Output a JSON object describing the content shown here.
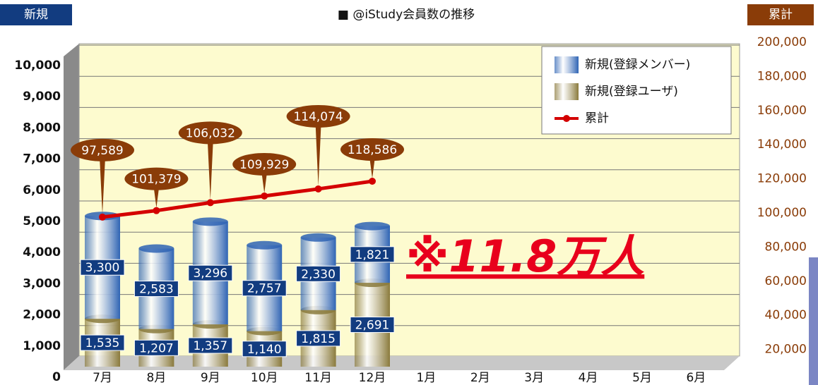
{
  "chart_data": {
    "type": "bar",
    "stacked": true,
    "title": "■ @iStudy会員数の推移",
    "y_label": "新規",
    "y2_label": "累計",
    "annotation": "※11.8万人",
    "categories": [
      "7月",
      "8月",
      "9月",
      "10月",
      "11月",
      "12月",
      "1月",
      "2月",
      "3月",
      "4月",
      "5月",
      "6月"
    ],
    "series": [
      {
        "name": "新規(登録ユーザ)",
        "color": "#8a7a3c",
        "type": "bar",
        "values": [
          1535,
          1207,
          1357,
          1140,
          1815,
          2691,
          null,
          null,
          null,
          null,
          null,
          null
        ],
        "value_labels": [
          "1,535",
          "1,207",
          "1,357",
          "1,140",
          "1,815",
          "2,691",
          null,
          null,
          null,
          null,
          null,
          null
        ]
      },
      {
        "name": "新規(登録メンバー)",
        "color": "#2f64b4",
        "type": "bar",
        "values": [
          3300,
          2583,
          3296,
          2757,
          2330,
          1821,
          null,
          null,
          null,
          null,
          null,
          null
        ],
        "value_labels": [
          "3,300",
          "2,583",
          "3,296",
          "2,757",
          "2,330",
          "1,821",
          null,
          null,
          null,
          null,
          null,
          null
        ]
      },
      {
        "name": "累計",
        "color": "#d40000",
        "type": "line",
        "axis": "y2",
        "values": [
          97589,
          101379,
          106032,
          109929,
          114074,
          118586,
          null,
          null,
          null,
          null,
          null,
          null
        ],
        "value_labels": [
          "97,589",
          "101,379",
          "106,032",
          "109,929",
          "114,074",
          "118,586",
          null,
          null,
          null,
          null,
          null,
          null
        ]
      }
    ],
    "legend_order": [
      1,
      0,
      2
    ],
    "legend": "upper right",
    "ylim": [
      0,
      10000
    ],
    "yticks": [
      0,
      {
        "value": 1000,
        "label": "1,000"
      },
      {
        "value": 2000,
        "label": "2,000"
      },
      {
        "value": 3000,
        "label": "3,000"
      },
      {
        "value": 4000,
        "label": "4,000"
      },
      {
        "value": 5000,
        "label": "5,000"
      },
      {
        "value": 6000,
        "label": "6,000"
      },
      {
        "value": 7000,
        "label": "7,000"
      },
      {
        "value": 8000,
        "label": "8,000"
      },
      {
        "value": 9000,
        "label": "9,000"
      },
      {
        "value": 10000,
        "label": "10,000"
      }
    ],
    "y2lim": [
      0,
      200000
    ],
    "y2ticks": [
      {
        "value": 20000,
        "label": "20,000"
      },
      {
        "value": 40000,
        "label": "40,000"
      },
      {
        "value": 60000,
        "label": "60,000"
      },
      {
        "value": 80000,
        "label": "80,000"
      },
      {
        "value": 100000,
        "label": "100,000"
      },
      {
        "value": 120000,
        "label": "120,000"
      },
      {
        "value": 140000,
        "label": "140,000"
      },
      {
        "value": 160000,
        "label": "160,000"
      },
      {
        "value": 180000,
        "label": "180,000"
      },
      {
        "value": 200000,
        "label": "200,000"
      }
    ],
    "grid": true
  }
}
